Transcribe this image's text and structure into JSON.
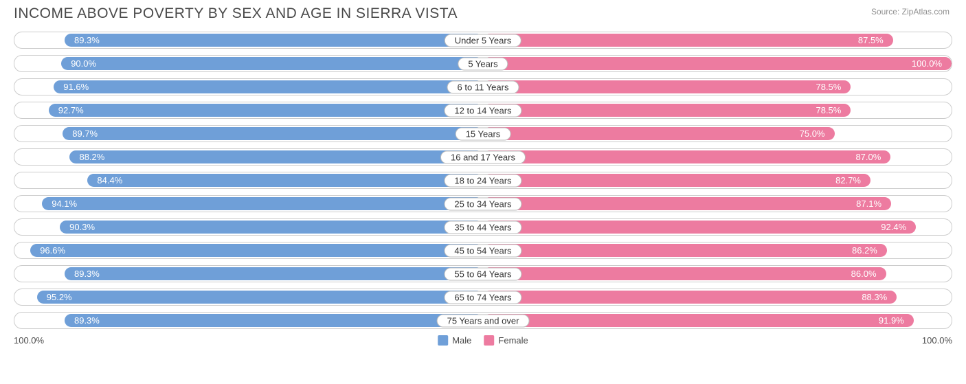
{
  "title": "INCOME ABOVE POVERTY BY SEX AND AGE IN SIERRA VISTA",
  "source": "Source: ZipAtlas.com",
  "colors": {
    "male": "#6f9fd8",
    "female": "#ed7ba0",
    "border": "#cccccc",
    "text_on_bar": "#ffffff",
    "title_color": "#4a4a4a",
    "source_color": "#909090",
    "background": "#ffffff"
  },
  "legend": {
    "male": "Male",
    "female": "Female"
  },
  "axis": {
    "left": "100.0%",
    "right": "100.0%",
    "max": 100.0
  },
  "font": {
    "title_size": 21,
    "label_size": 13,
    "value_size": 13
  },
  "rows": [
    {
      "category": "Under 5 Years",
      "male": 89.3,
      "female": 87.5
    },
    {
      "category": "5 Years",
      "male": 90.0,
      "female": 100.0
    },
    {
      "category": "6 to 11 Years",
      "male": 91.6,
      "female": 78.5
    },
    {
      "category": "12 to 14 Years",
      "male": 92.7,
      "female": 78.5
    },
    {
      "category": "15 Years",
      "male": 89.7,
      "female": 75.0
    },
    {
      "category": "16 and 17 Years",
      "male": 88.2,
      "female": 87.0
    },
    {
      "category": "18 to 24 Years",
      "male": 84.4,
      "female": 82.7
    },
    {
      "category": "25 to 34 Years",
      "male": 94.1,
      "female": 87.1
    },
    {
      "category": "35 to 44 Years",
      "male": 90.3,
      "female": 92.4
    },
    {
      "category": "45 to 54 Years",
      "male": 96.6,
      "female": 86.2
    },
    {
      "category": "55 to 64 Years",
      "male": 89.3,
      "female": 86.0
    },
    {
      "category": "65 to 74 Years",
      "male": 95.2,
      "female": 88.3
    },
    {
      "category": "75 Years and over",
      "male": 89.3,
      "female": 91.9
    }
  ]
}
